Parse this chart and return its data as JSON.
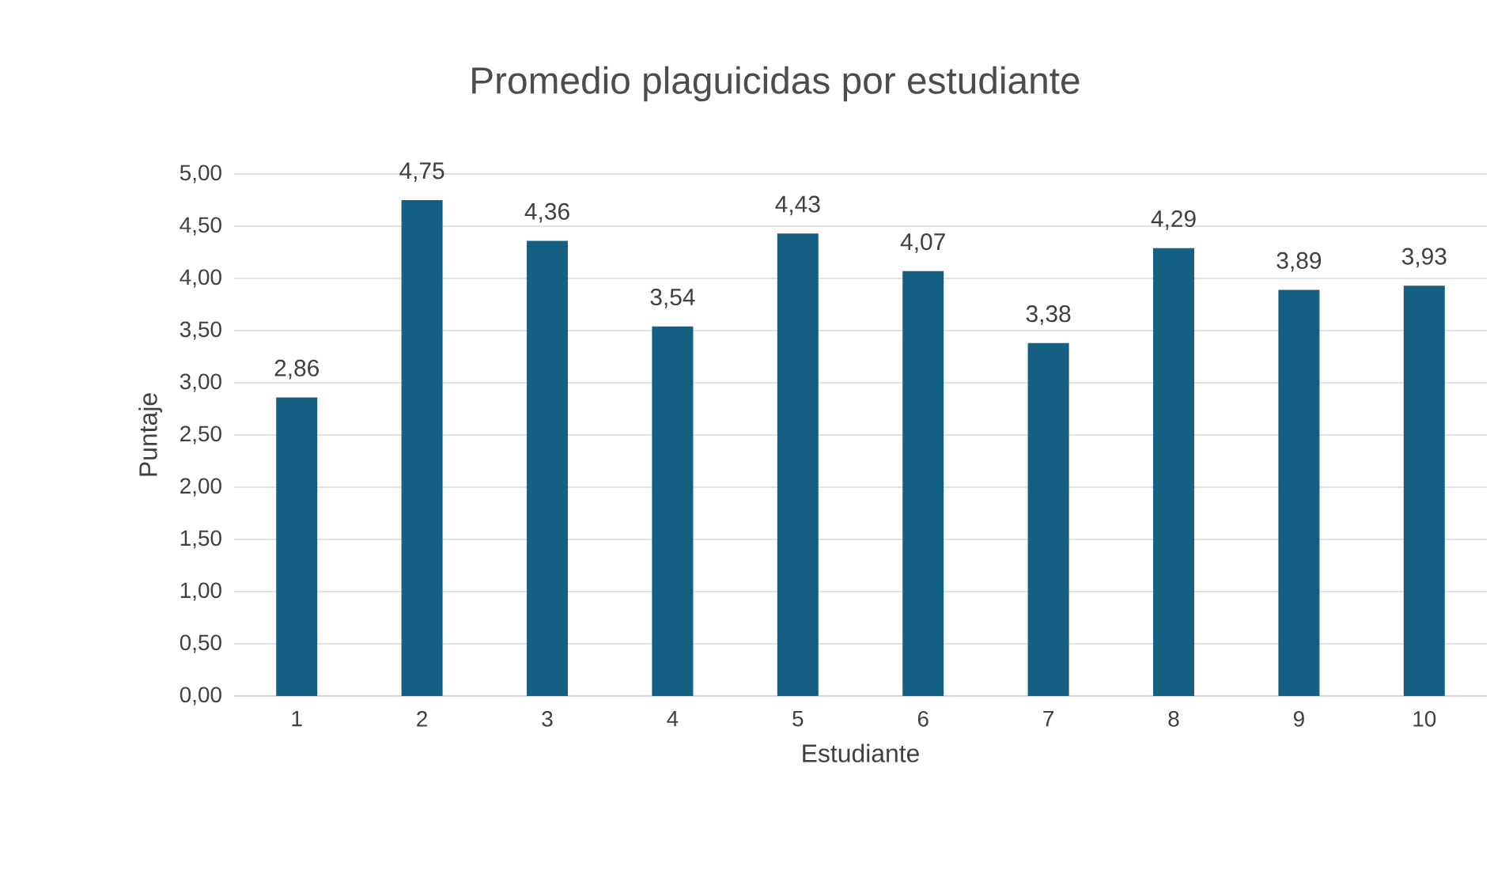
{
  "chart_data": {
    "type": "bar",
    "title": "Promedio plaguicidas por estudiante",
    "xlabel": "Estudiante",
    "ylabel": "Puntaje",
    "categories": [
      "1",
      "2",
      "3",
      "4",
      "5",
      "6",
      "7",
      "8",
      "9",
      "10"
    ],
    "values": [
      2.86,
      4.75,
      4.36,
      3.54,
      4.43,
      4.07,
      3.38,
      4.29,
      3.89,
      3.93
    ],
    "value_labels": [
      "2,86",
      "4,75",
      "4,36",
      "3,54",
      "4,43",
      "4,07",
      "3,38",
      "4,29",
      "3,89",
      "3,93"
    ],
    "color": "#156082",
    "ylim": [
      0,
      5
    ],
    "yticks": [
      {
        "value": 0,
        "label": "0,00"
      },
      {
        "value": 0.5,
        "label": "0,50"
      },
      {
        "value": 1,
        "label": "1,00"
      },
      {
        "value": 1.5,
        "label": "1,50"
      },
      {
        "value": 2,
        "label": "2,00"
      },
      {
        "value": 2.5,
        "label": "2,50"
      },
      {
        "value": 3,
        "label": "3,00"
      },
      {
        "value": 3.5,
        "label": "3,50"
      },
      {
        "value": 4,
        "label": "4,00"
      },
      {
        "value": 4.5,
        "label": "4,50"
      },
      {
        "value": 5,
        "label": "5,00"
      }
    ],
    "grid": "y"
  }
}
